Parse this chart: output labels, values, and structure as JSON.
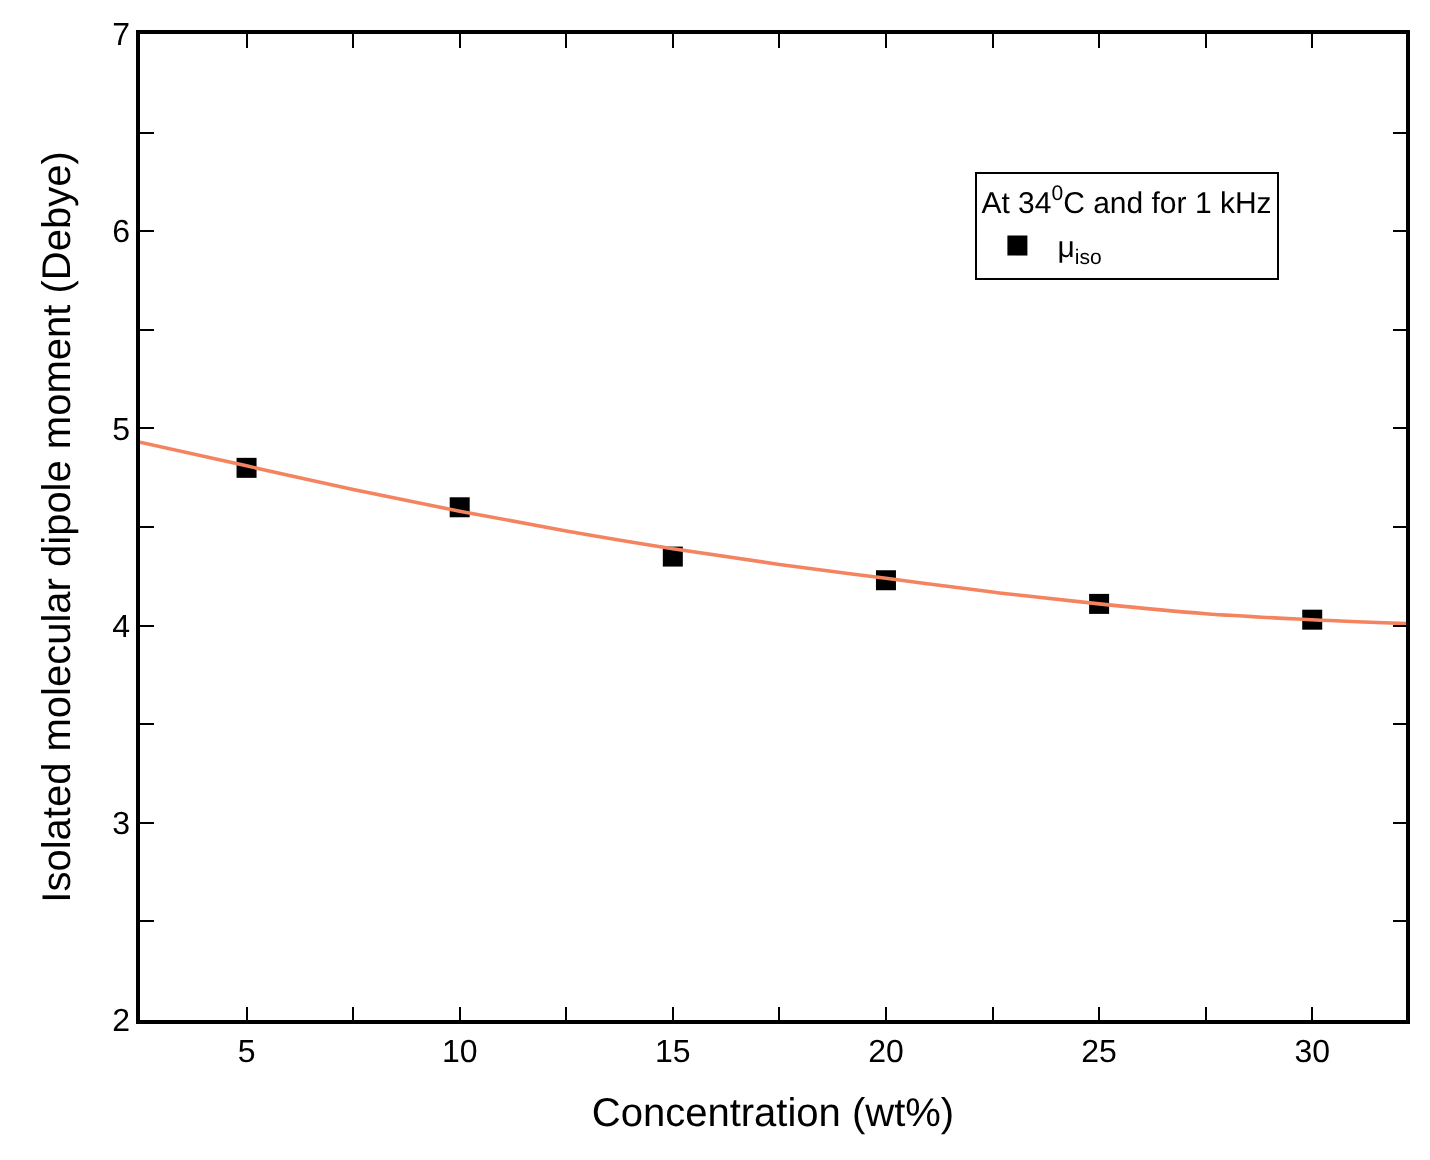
{
  "chart_data": {
    "type": "scatter",
    "xlabel": "Concentration (wt%)",
    "ylabel": "Isolated molecular dipole moment (Debye)",
    "legend_title": "At 34$^{0}$C and for 1 kHz",
    "series": [
      {
        "name": "μ$_{iso}$",
        "color": "#000000",
        "marker": "square",
        "x": [
          5,
          10,
          15,
          20,
          25,
          30
        ],
        "values": [
          4.8,
          4.6,
          4.35,
          4.23,
          4.11,
          4.03
        ]
      },
      {
        "type": "line",
        "color": "#f4845f",
        "marker": "none",
        "x": [
          2.5,
          5,
          7.5,
          10,
          12.5,
          15,
          17.5,
          20,
          22.5,
          25,
          27.5,
          30,
          32.2
        ],
        "values": [
          4.93,
          4.81,
          4.69,
          4.58,
          4.48,
          4.39,
          4.31,
          4.24,
          4.17,
          4.11,
          4.06,
          4.03,
          4.01
        ]
      }
    ],
    "xlim": [
      2.5,
      32.2
    ],
    "xticks": [
      5,
      {
        "value": 7.5,
        "label": null
      },
      10,
      {
        "value": 12.5,
        "label": null
      },
      15,
      {
        "value": 17.5,
        "label": null
      },
      20,
      {
        "value": 22.5,
        "label": null
      },
      25,
      {
        "value": 27.5,
        "label": null
      },
      30
    ],
    "ylim": [
      2,
      7
    ],
    "yticks": [
      2,
      {
        "value": 2.5,
        "label": null
      },
      3,
      {
        "value": 3.5,
        "label": null
      },
      4,
      {
        "value": 4.5,
        "label": null
      },
      5,
      {
        "value": 5.5,
        "label": null
      },
      6,
      {
        "value": 6.5,
        "label": null
      },
      7
    ],
    "legend": "top right"
  }
}
